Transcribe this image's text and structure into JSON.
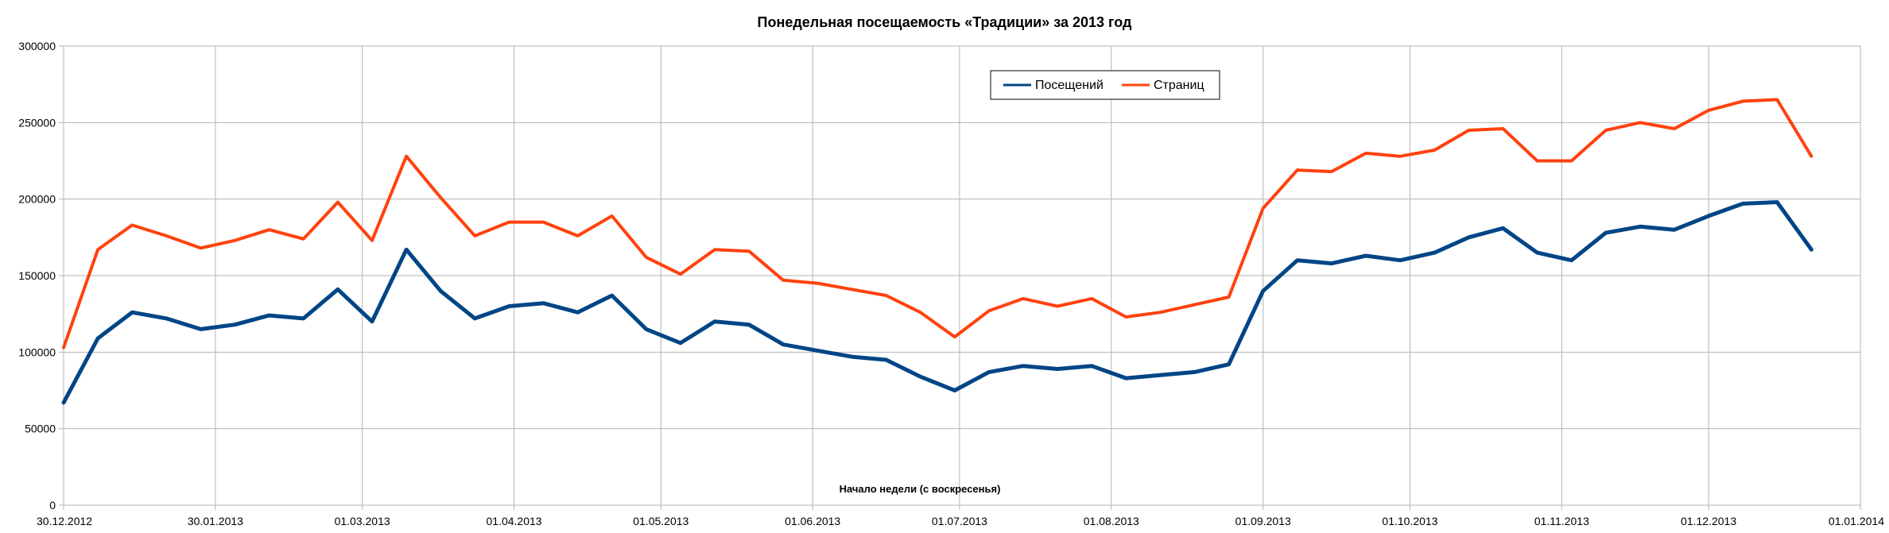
{
  "chart_data": {
    "type": "line",
    "title": "Понедельная посещаемость «Традиции» за 2013 год",
    "xlabel": "Начало недели (с воскресенья)",
    "ylabel": "",
    "x_ticks": [
      "30.12.2012",
      "30.01.2013",
      "01.03.2013",
      "01.04.2013",
      "01.05.2013",
      "01.06.2013",
      "01.07.2013",
      "01.08.2013",
      "01.09.2013",
      "01.10.2013",
      "01.11.2013",
      "01.12.2013",
      "01.01.2014"
    ],
    "y_ticks": [
      "0",
      "50000",
      "100000",
      "150000",
      "200000",
      "250000",
      "300000"
    ],
    "xlim": [
      "2012-12-30",
      "2014-01-01"
    ],
    "ylim": [
      0,
      300000
    ],
    "grid": true,
    "legend_position": "top-center",
    "x": [
      "2012-12-30",
      "2013-01-06",
      "2013-01-13",
      "2013-01-20",
      "2013-01-27",
      "2013-02-03",
      "2013-02-10",
      "2013-02-17",
      "2013-02-24",
      "2013-03-03",
      "2013-03-10",
      "2013-03-17",
      "2013-03-24",
      "2013-03-31",
      "2013-04-07",
      "2013-04-14",
      "2013-04-21",
      "2013-04-28",
      "2013-05-05",
      "2013-05-12",
      "2013-05-19",
      "2013-05-26",
      "2013-06-02",
      "2013-06-09",
      "2013-06-16",
      "2013-06-23",
      "2013-06-30",
      "2013-07-07",
      "2013-07-14",
      "2013-07-21",
      "2013-07-28",
      "2013-08-04",
      "2013-08-11",
      "2013-08-18",
      "2013-08-25",
      "2013-09-01",
      "2013-09-08",
      "2013-09-15",
      "2013-09-22",
      "2013-09-29",
      "2013-10-06",
      "2013-10-13",
      "2013-10-20",
      "2013-10-27",
      "2013-11-03",
      "2013-11-10",
      "2013-11-17",
      "2013-11-24",
      "2013-12-01",
      "2013-12-08",
      "2013-12-15",
      "2013-12-22"
    ],
    "series": [
      {
        "name": "Посещений",
        "color": "#004586",
        "values": [
          67000,
          109000,
          126000,
          122000,
          115000,
          118000,
          124000,
          122000,
          141000,
          120000,
          167000,
          140000,
          122000,
          130000,
          132000,
          126000,
          137000,
          115000,
          106000,
          120000,
          118000,
          105000,
          101000,
          97000,
          95000,
          84000,
          75000,
          87000,
          91000,
          89000,
          91000,
          83000,
          85000,
          87000,
          92000,
          140000,
          160000,
          158000,
          163000,
          160000,
          165000,
          175000,
          181000,
          165000,
          160000,
          178000,
          182000,
          180000,
          189000,
          197000,
          198000,
          167000
        ]
      },
      {
        "name": "Страниц",
        "color": "#ff420e",
        "values": [
          103000,
          167000,
          183000,
          176000,
          168000,
          173000,
          180000,
          174000,
          198000,
          173000,
          228000,
          201000,
          176000,
          185000,
          185000,
          176000,
          189000,
          162000,
          151000,
          167000,
          166000,
          147000,
          145000,
          141000,
          137000,
          126000,
          110000,
          127000,
          135000,
          130000,
          135000,
          123000,
          126000,
          131000,
          136000,
          194000,
          219000,
          218000,
          230000,
          228000,
          232000,
          245000,
          246000,
          225000,
          225000,
          245000,
          250000,
          246000,
          258000,
          264000,
          265000,
          228000
        ]
      }
    ]
  }
}
